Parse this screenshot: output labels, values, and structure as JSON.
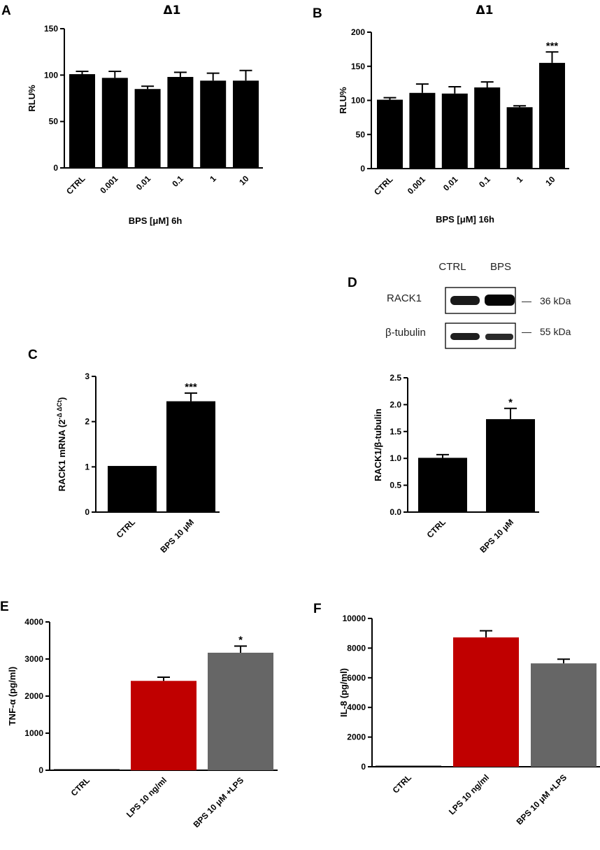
{
  "figure_labels": [
    "A",
    "B",
    "C",
    "D",
    "E",
    "F"
  ],
  "blot": {
    "lane_labels": [
      "CTRL",
      "BPS"
    ],
    "rows": [
      {
        "protein": "RACK1",
        "marker": "36 kDa"
      },
      {
        "protein": "β-tubulin",
        "marker": "55 kDa"
      }
    ],
    "dash": "—"
  },
  "chart_data": [
    {
      "id": "A",
      "type": "bar",
      "title": "Δ1",
      "categories": [
        "CTRL",
        "0.001",
        "0.01",
        "0.1",
        "1",
        "10"
      ],
      "values": [
        101,
        97,
        85,
        98,
        94,
        94
      ],
      "errors": [
        3,
        7,
        3,
        5,
        8,
        11
      ],
      "colors": [
        "#000000",
        "#000000",
        "#000000",
        "#000000",
        "#000000",
        "#000000"
      ],
      "significance": [
        "",
        "",
        "",
        "",
        "",
        ""
      ],
      "ylabel": "RLU%",
      "xlabel": "BPS [μM] 6h",
      "ylim": [
        0,
        150
      ],
      "yticks": [
        0,
        50,
        100,
        150
      ],
      "tick_decimals": 0
    },
    {
      "id": "B",
      "type": "bar",
      "title": "Δ1",
      "categories": [
        "CTRL",
        "0.001",
        "0.01",
        "0.1",
        "1",
        "10"
      ],
      "values": [
        101,
        111,
        110,
        119,
        90,
        155
      ],
      "errors": [
        3,
        13,
        10,
        8,
        2,
        16
      ],
      "colors": [
        "#000000",
        "#000000",
        "#000000",
        "#000000",
        "#000000",
        "#000000"
      ],
      "significance": [
        "",
        "",
        "",
        "",
        "",
        "***"
      ],
      "ylabel": "RLU%",
      "xlabel": "BPS [μM] 16h",
      "ylim": [
        0,
        200
      ],
      "yticks": [
        0,
        50,
        100,
        150,
        200
      ],
      "tick_decimals": 0
    },
    {
      "id": "C",
      "type": "bar",
      "title": "",
      "categories": [
        "CTRL",
        "BPS 10 μM"
      ],
      "values": [
        1.02,
        2.45
      ],
      "errors": [
        0,
        0.18
      ],
      "colors": [
        "#000000",
        "#000000"
      ],
      "significance": [
        "",
        "***"
      ],
      "ylabel_main": "RACK1 mRNA (2",
      "ylabel_sup": "-Δ ΔCt",
      "ylabel_end": ")",
      "xlabel": "",
      "ylim": [
        0,
        3
      ],
      "yticks": [
        0,
        1,
        2,
        3
      ],
      "tick_decimals": 0
    },
    {
      "id": "D",
      "type": "bar",
      "title": "",
      "categories": [
        "CTRL",
        "BPS 10 μM"
      ],
      "values": [
        1.01,
        1.73
      ],
      "errors": [
        0.06,
        0.2
      ],
      "colors": [
        "#000000",
        "#000000"
      ],
      "significance": [
        "",
        "*"
      ],
      "ylabel": "RACK1/β-tubulin",
      "xlabel": "",
      "ylim": [
        0,
        2.5
      ],
      "yticks": [
        0,
        0.5,
        1,
        1.5,
        2,
        2.5
      ],
      "tick_decimals": 1
    },
    {
      "id": "E",
      "type": "bar",
      "title": "",
      "categories": [
        "CTRL",
        "LPS 10 ng/ml",
        "BPS 10 μM +LPS"
      ],
      "values": [
        20,
        2410,
        3170
      ],
      "errors": [
        0,
        100,
        180
      ],
      "colors": [
        "#000000",
        "#c00000",
        "#666666"
      ],
      "significance": [
        "",
        "",
        "*"
      ],
      "ylabel": "TNF-α (pg/ml)",
      "xlabel": "",
      "ylim": [
        0,
        4000
      ],
      "yticks": [
        0,
        1000,
        2000,
        3000,
        4000
      ],
      "tick_decimals": 0
    },
    {
      "id": "F",
      "type": "bar",
      "title": "",
      "categories": [
        "CTRL",
        "LPS 10 ng/ml",
        "BPS 10 μM +LPS"
      ],
      "values": [
        0,
        8720,
        6970
      ],
      "errors": [
        0,
        450,
        280
      ],
      "colors": [
        "#000000",
        "#c00000",
        "#666666"
      ],
      "significance": [
        "",
        "",
        ""
      ],
      "ylabel": "IL-8 (pg/ml)",
      "xlabel": "",
      "ylim": [
        0,
        10000
      ],
      "yticks": [
        0,
        2000,
        4000,
        6000,
        8000,
        10000
      ],
      "tick_decimals": 0
    }
  ]
}
